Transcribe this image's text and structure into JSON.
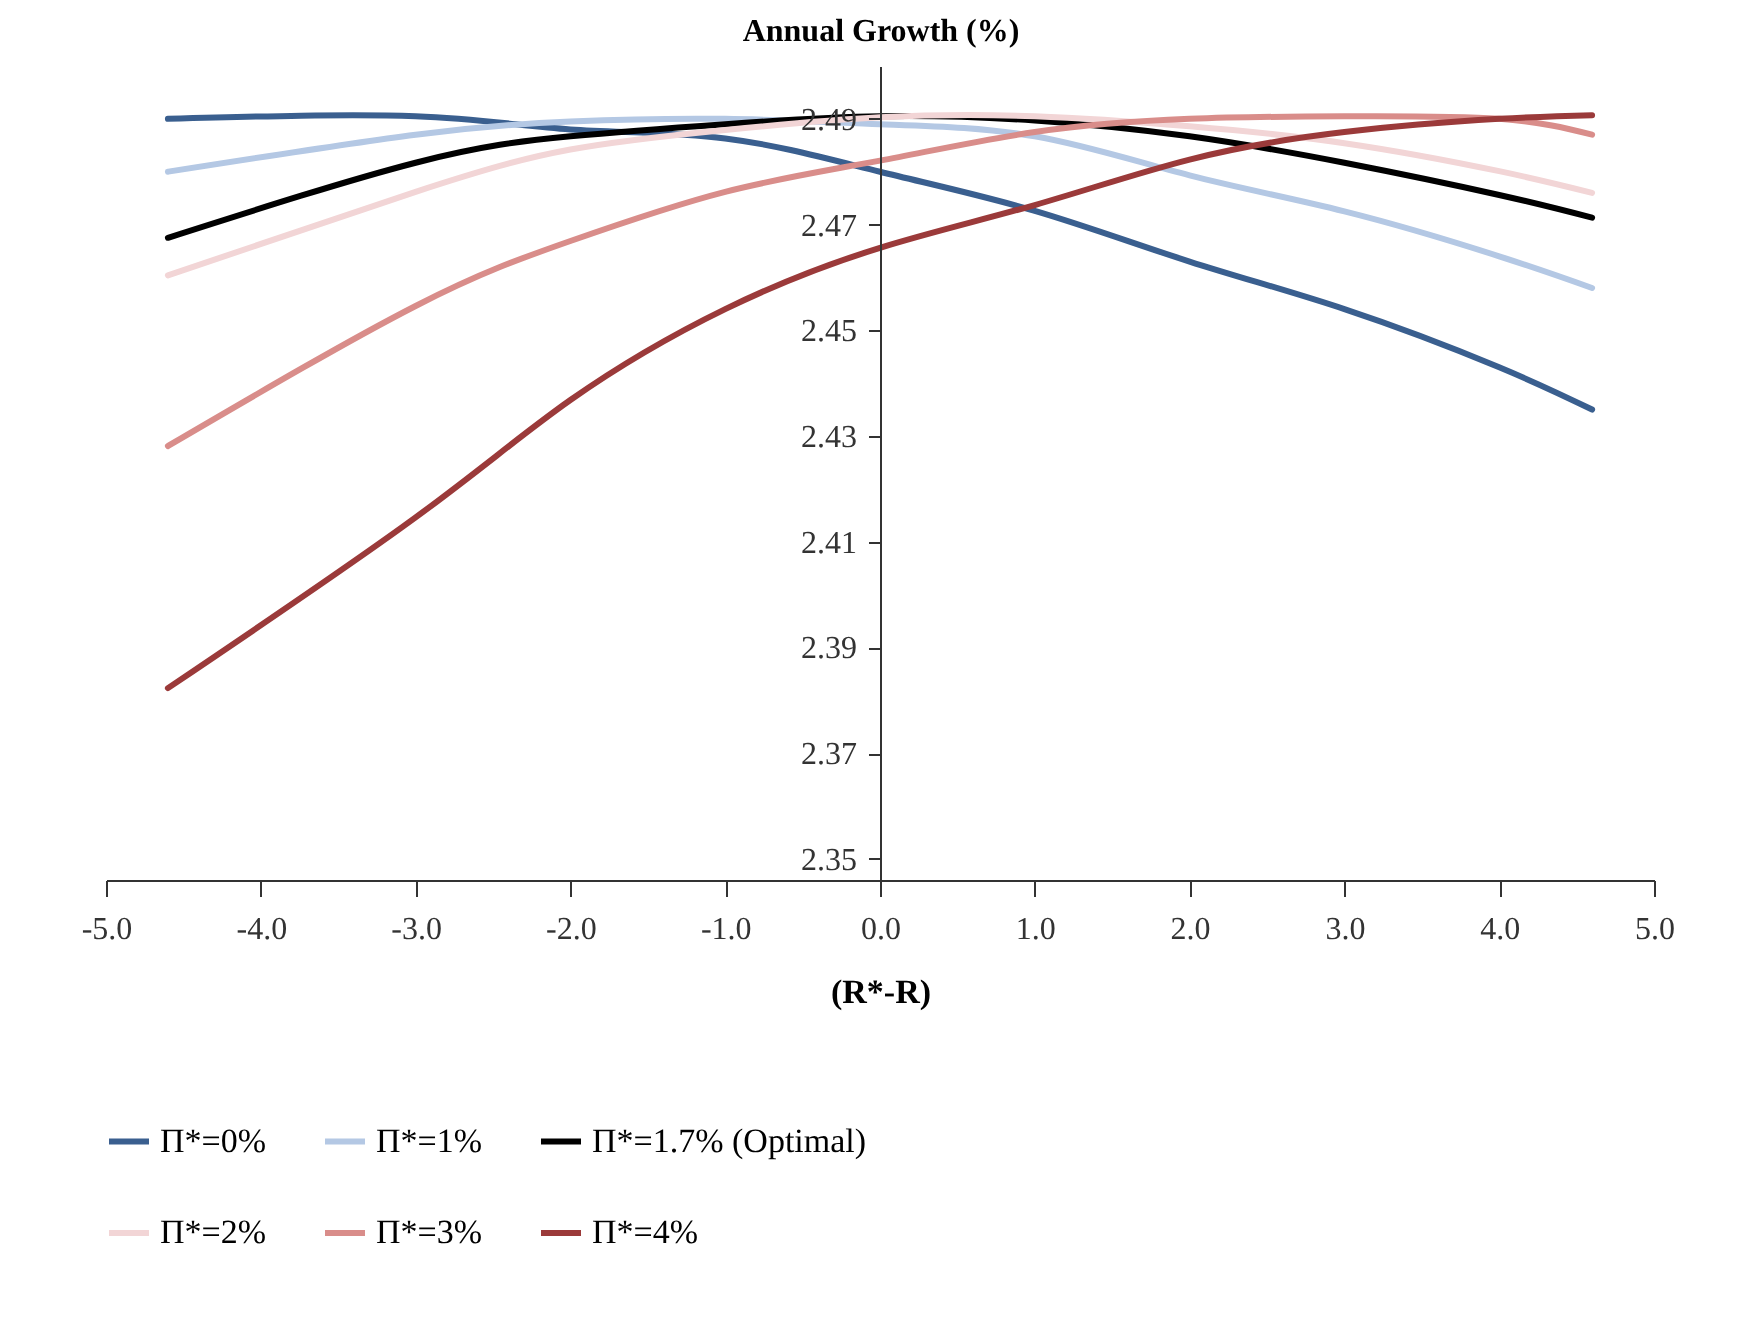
{
  "chart_data": {
    "type": "line",
    "xlabel": "(R*-R)",
    "ylabel": "Annual Growth (%)",
    "x": [
      -4.6,
      -3,
      -2,
      -1,
      0,
      1,
      2,
      3,
      4,
      4.6
    ],
    "series": [
      {
        "name": "Π*=0%",
        "color": "#3a5f8f",
        "values": [
          2.49,
          2.4905,
          2.488,
          2.4863,
          2.48,
          2.4726,
          2.463,
          2.454,
          2.443,
          2.435
        ]
      },
      {
        "name": "Π*=1%",
        "color": "#b4c8e4",
        "values": [
          2.48,
          2.487,
          2.4895,
          2.49,
          2.489,
          2.4867,
          2.4793,
          2.4725,
          2.464,
          2.458
        ]
      },
      {
        "name": "Π*=1.7% (Optimal)",
        "color": "#000000",
        "values": [
          2.4675,
          2.4817,
          2.4867,
          2.489,
          2.4905,
          2.4897,
          2.4867,
          2.4817,
          2.4756,
          2.4713
        ]
      },
      {
        "name": "Π*=2%",
        "color": "#f2d5d6",
        "values": [
          2.4604,
          2.4762,
          2.4842,
          2.4879,
          2.4903,
          2.4905,
          2.4886,
          2.4854,
          2.4801,
          2.476
        ]
      },
      {
        "name": "Π*=3%",
        "color": "#d98d8a",
        "values": [
          2.4281,
          2.4546,
          2.4669,
          2.4762,
          2.4821,
          2.4875,
          2.49,
          2.4905,
          2.49,
          2.487
        ]
      },
      {
        "name": "Π*=4%",
        "color": "#9b3a3a",
        "values": [
          2.3823,
          2.4146,
          2.4368,
          2.454,
          2.4656,
          2.4737,
          2.4823,
          2.4875,
          2.49,
          2.4907
        ]
      }
    ],
    "xlim": [
      -5,
      5
    ],
    "xticks": [
      {
        "value": -5,
        "label": "-5.0"
      },
      {
        "value": -4,
        "label": "-4.0"
      },
      {
        "value": -3,
        "label": "-3.0"
      },
      {
        "value": -2,
        "label": "-2.0"
      },
      {
        "value": -1,
        "label": "-1.0"
      },
      {
        "value": 0,
        "label": "0.0"
      },
      {
        "value": 1,
        "label": "1.0"
      },
      {
        "value": 2,
        "label": "2.0"
      },
      {
        "value": 3,
        "label": "3.0"
      },
      {
        "value": 4,
        "label": "4.0"
      },
      {
        "value": 5,
        "label": "5.0"
      }
    ],
    "ylim": [
      2.346,
      2.5
    ],
    "yticks": [
      2.35,
      2.37,
      2.39,
      2.41,
      2.43,
      2.45,
      2.47,
      2.49
    ],
    "grid": false,
    "legend": "bottom",
    "marker": "none",
    "line_style": "solid"
  }
}
